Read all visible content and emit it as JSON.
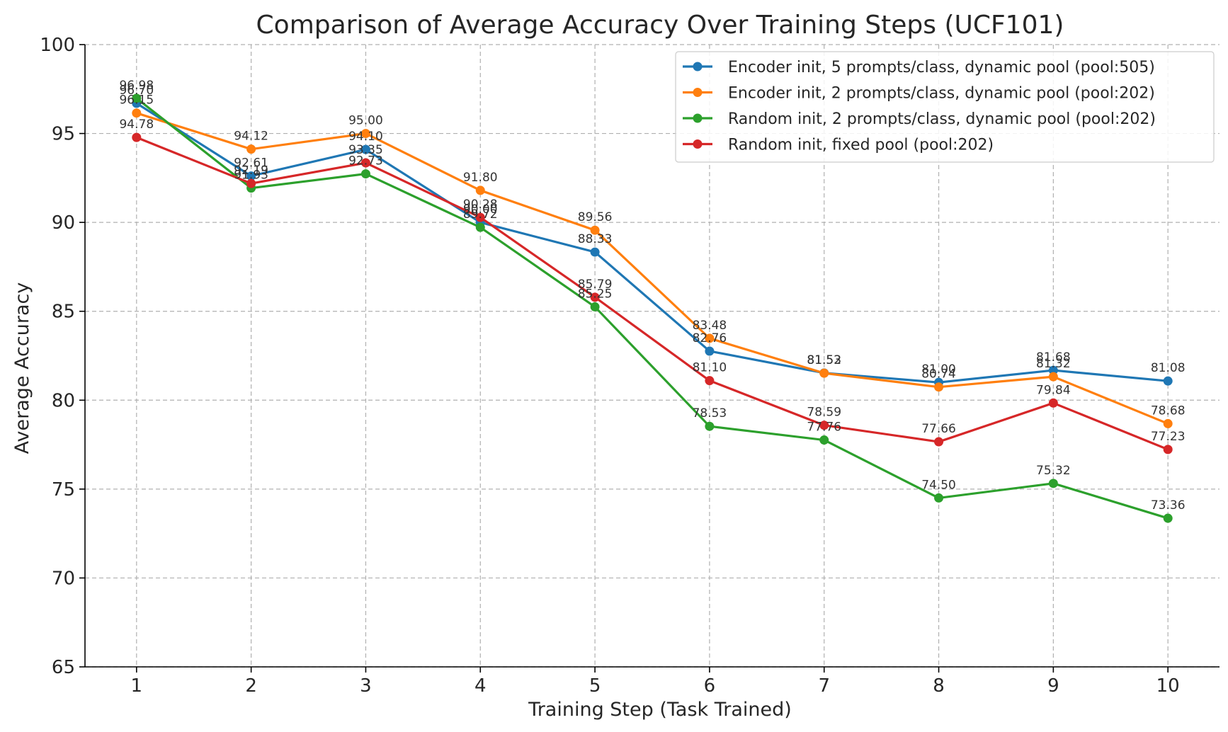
{
  "chart_data": {
    "type": "line",
    "title": "Comparison of Average Accuracy Over Training Steps (UCF101)",
    "xlabel": "Training Step (Task Trained)",
    "ylabel": "Average Accuracy",
    "x": [
      1,
      2,
      3,
      4,
      5,
      6,
      7,
      8,
      9,
      10
    ],
    "xlim": [
      0.55,
      10.45
    ],
    "ylim": [
      65,
      100
    ],
    "yticks": [
      65,
      70,
      75,
      80,
      85,
      90,
      95,
      100
    ],
    "grid": true,
    "legend_position": "top-right",
    "series": [
      {
        "name": "Encoder init, 5 prompts/class, dynamic pool (pool:505)",
        "color": "#1f77b4",
        "values": [
          96.7,
          92.61,
          94.1,
          90.0,
          88.33,
          82.76,
          81.53,
          81.0,
          81.68,
          81.08
        ],
        "labels": [
          "96.70",
          "92.61",
          "94.10",
          "90.00",
          "88.33",
          "82.76",
          "81.53",
          "81.00",
          "81.68",
          "81.08"
        ]
      },
      {
        "name": "Encoder init, 2 prompts/class, dynamic pool (pool:202)",
        "color": "#ff7f0e",
        "values": [
          96.15,
          94.12,
          95.0,
          91.8,
          89.56,
          83.48,
          81.52,
          80.74,
          81.32,
          78.68
        ],
        "labels": [
          "96.15",
          "94.12",
          "95.00",
          "91.80",
          "89.56",
          "83.48",
          "81.52",
          "80.74",
          "81.32",
          "78.68"
        ]
      },
      {
        "name": "Random init, 2 prompts/class, dynamic pool (pool:202)",
        "color": "#2ca02c",
        "values": [
          96.98,
          91.93,
          92.73,
          89.72,
          85.25,
          78.53,
          77.76,
          74.5,
          75.32,
          73.36
        ],
        "labels": [
          "96.98",
          "91.93",
          "92.73",
          "89.72",
          "85.25",
          "78.53",
          "77.76",
          "74.50",
          "75.32",
          "73.36"
        ]
      },
      {
        "name": "Random init, fixed pool (pool:202)",
        "color": "#d62728",
        "values": [
          94.78,
          92.19,
          93.35,
          90.28,
          85.79,
          81.1,
          78.59,
          77.66,
          79.84,
          77.23
        ],
        "labels": [
          "94.78",
          "92.19",
          "93.35",
          "90.28",
          "85.79",
          "81.10",
          "78.59",
          "77.66",
          "79.84",
          "77.23"
        ]
      }
    ]
  }
}
